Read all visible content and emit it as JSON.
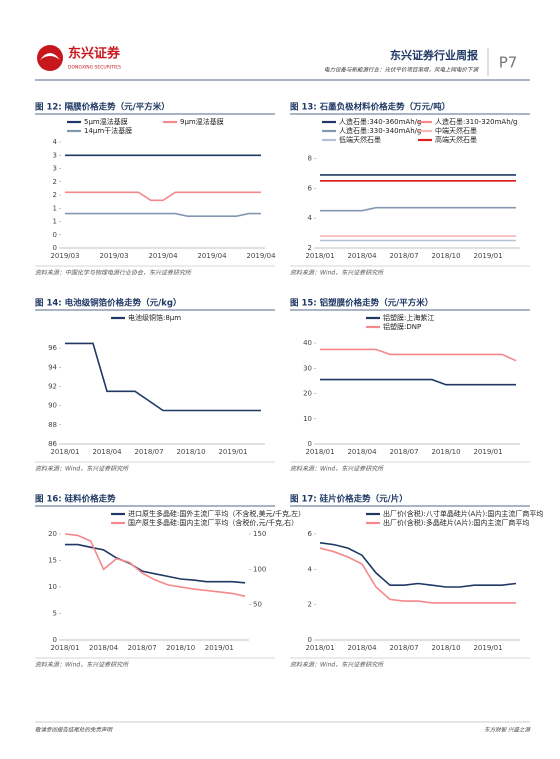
{
  "header": {
    "logo": "东兴证券",
    "logo_en": "DONGXING SECURITIES",
    "title": "东兴证券行业周报",
    "subtitle": "电力设备与新能源行业：光伏平价项目渐增，风电上网电价下调",
    "page": "P7"
  },
  "footer": {
    "left": "敬请参阅报告结尾处的免责声明",
    "right": "东方财智 兴盛之源"
  },
  "chart_data": [
    {
      "type": "line",
      "title": "图 12: 隔膜价格走势（元/平方米）",
      "source": "资料来源：中国化学与物理电源行业协会，东兴证券研究所",
      "categories": [
        "2019/03",
        null,
        null,
        null,
        "2019/03",
        null,
        null,
        null,
        "2019/04",
        null,
        null,
        null,
        "2019/04",
        null,
        null,
        null,
        "2019/04"
      ],
      "series": [
        {
          "name": "5μm湿法基膜",
          "color": "#1f3864",
          "values": [
            3.5,
            3.5,
            3.5,
            3.5,
            3.5,
            3.5,
            3.5,
            3.5,
            3.5,
            3.5,
            3.5,
            3.5,
            3.5,
            3.5,
            3.5,
            3.5,
            3.5
          ]
        },
        {
          "name": "9μm湿法基膜",
          "color": "#f4888a",
          "values": [
            2.1,
            2.1,
            2.1,
            2.1,
            2.1,
            2.1,
            2.1,
            1.8,
            1.8,
            2.1,
            2.1,
            2.1,
            2.1,
            2.1,
            2.1,
            2.1,
            2.1
          ]
        },
        {
          "name": "14μm干法基膜",
          "color": "#8497b0",
          "values": [
            1.3,
            1.3,
            1.3,
            1.3,
            1.3,
            1.3,
            1.3,
            1.3,
            1.3,
            1.3,
            1.2,
            1.2,
            1.2,
            1.2,
            1.2,
            1.3,
            1.3
          ]
        }
      ],
      "ylim": [
        0,
        4
      ],
      "yticks": [
        0,
        {
          "value": 0.5,
          "label": "0"
        },
        1,
        {
          "value": 1.5,
          "label": "1"
        },
        2,
        {
          "value": 2.5,
          "label": "2"
        },
        3,
        {
          "value": 3.5,
          "label": "3"
        },
        4
      ],
      "grid": false
    },
    {
      "type": "line",
      "title": "图 13: 石墨负极材料价格走势（万元/吨）",
      "source": "资料来源：Wind，东兴证券研究所",
      "categories": [
        "2018/01",
        null,
        null,
        "2018/04",
        null,
        null,
        "2018/07",
        null,
        null,
        "2018/10",
        null,
        null,
        "2019/01",
        null,
        null
      ],
      "series": [
        {
          "name": "人造石墨:340-360mAh/g",
          "color": "#1f3864",
          "values": [
            6.9,
            6.9,
            6.9,
            6.9,
            6.9,
            6.9,
            6.9,
            6.9,
            6.9,
            6.9,
            6.9,
            6.9,
            6.9,
            6.9,
            6.9
          ]
        },
        {
          "name": "人造石墨:310-320mAh/g",
          "color": "#f4888a",
          "values": [
            6.5,
            6.5,
            6.5,
            6.5,
            6.5,
            6.5,
            6.5,
            6.5,
            6.5,
            6.5,
            6.5,
            6.5,
            6.5,
            6.5,
            6.5
          ]
        },
        {
          "name": "人造石墨:330-340mAh/g",
          "color": "#8497b0",
          "values": [
            4.5,
            4.5,
            4.5,
            4.5,
            4.7,
            4.7,
            4.7,
            4.7,
            4.7,
            4.7,
            4.7,
            4.7,
            4.7,
            4.7,
            4.7
          ]
        },
        {
          "name": "中端天然石墨",
          "color": "#f7b6b6",
          "values": [
            2.8,
            2.8,
            2.8,
            2.8,
            2.8,
            2.8,
            2.8,
            2.8,
            2.8,
            2.8,
            2.8,
            2.8,
            2.8,
            2.8,
            2.8
          ]
        },
        {
          "name": "低端天然石墨",
          "color": "#b4c0d3",
          "values": [
            2.5,
            2.5,
            2.5,
            2.5,
            2.5,
            2.5,
            2.5,
            2.5,
            2.5,
            2.5,
            2.5,
            2.5,
            2.5,
            2.5,
            2.5
          ]
        },
        {
          "name": "高端天然石墨",
          "color": "#e02020",
          "values": [
            6.5,
            6.5,
            6.5,
            6.5,
            6.5,
            6.5,
            6.5,
            6.5,
            6.5,
            6.5,
            6.5,
            6.5,
            6.5,
            6.5,
            6.5
          ]
        }
      ],
      "ylim": [
        2,
        8.5
      ],
      "yticks": [
        2,
        4,
        6,
        8
      ],
      "grid": false
    },
    {
      "type": "line",
      "title": "图 14: 电池级铜箔价格走势（元/kg）",
      "source": "资料来源：Wind，东兴证券研究所",
      "categories": [
        "2018/01",
        null,
        null,
        "2018/04",
        null,
        null,
        "2018/07",
        null,
        null,
        "2018/10",
        null,
        null,
        "2019/01",
        null,
        null
      ],
      "series": [
        {
          "name": "电池级铜箔:8μm",
          "color": "#1f3864",
          "values": [
            96.5,
            96.5,
            96.5,
            91.5,
            91.5,
            91.5,
            90.5,
            89.5,
            89.5,
            89.5,
            89.5,
            89.5,
            89.5,
            89.5,
            89.5
          ]
        }
      ],
      "ylim": [
        86,
        98
      ],
      "yticks": [
        86,
        88,
        90,
        92,
        94,
        96
      ],
      "grid": false
    },
    {
      "type": "line",
      "title": "图 15: 铝塑膜价格走势（元/平方米）",
      "source": "资料来源：Wind，东兴证券研究所",
      "categories": [
        "2018/01",
        null,
        null,
        "2018/04",
        null,
        null,
        "2018/07",
        null,
        null,
        "2018/10",
        null,
        null,
        "2019/01",
        null,
        null
      ],
      "series": [
        {
          "name": "铝塑膜:上海紫江",
          "color": "#1f3864",
          "values": [
            25.5,
            25.5,
            25.5,
            25.5,
            25.5,
            25.5,
            25.5,
            25.5,
            25.5,
            23.5,
            23.5,
            23.5,
            23.5,
            23.5,
            23.5
          ]
        },
        {
          "name": "铝塑膜:DNP",
          "color": "#f4888a",
          "values": [
            37.5,
            37.5,
            37.5,
            37.5,
            37.5,
            35.5,
            35.5,
            35.5,
            35.5,
            35.5,
            35.5,
            35.5,
            35.5,
            35.5,
            33
          ]
        }
      ],
      "ylim": [
        0,
        42
      ],
      "yticks": [
        0,
        10,
        20,
        30,
        40
      ],
      "grid": false
    },
    {
      "type": "line",
      "title": "图 16: 硅料价格走势",
      "source": "资料来源：Wind，东兴证券研究所",
      "categories": [
        "2018/01",
        null,
        null,
        "2018/04",
        null,
        null,
        "2018/07",
        null,
        null,
        "2018/10",
        null,
        null,
        "2019/01",
        null,
        null
      ],
      "series": [
        {
          "name": "进口原生多晶硅:国外主流厂平均（不含税,美元/千克,左）",
          "color": "#1f3864",
          "values": [
            18,
            18,
            17.5,
            17,
            15.5,
            14.5,
            13,
            12.5,
            12,
            11.5,
            11.3,
            11,
            11,
            11,
            10.8
          ]
        },
        {
          "name": "国产原生多晶硅:国内主流厂平均（含税价,元/千克,右）",
          "color": "#f4888a",
          "axis": "y2",
          "values": [
            150,
            148,
            140,
            100,
            115,
            110,
            95,
            85,
            78,
            75,
            72,
            70,
            68,
            66,
            62
          ]
        }
      ],
      "ylim": [
        0,
        20
      ],
      "yticks": [
        0,
        5,
        10,
        15,
        20
      ],
      "y2lim": [
        0,
        150
      ],
      "y2ticks": [
        50,
        100,
        150
      ],
      "grid": false
    },
    {
      "type": "line",
      "title": "图 17: 硅片价格走势（元/片）",
      "source": "资料来源：Wind，东兴证券研究所",
      "categories": [
        "2018/01",
        null,
        null,
        "2018/04",
        null,
        null,
        "2018/07",
        null,
        null,
        "2018/10",
        null,
        null,
        "2019/01",
        null,
        null
      ],
      "series": [
        {
          "name": "出厂价(含税):八寸单晶硅片(A片):国内主流厂商平均",
          "color": "#1f3864",
          "values": [
            5.5,
            5.4,
            5.2,
            4.8,
            3.8,
            3.1,
            3.1,
            3.2,
            3.1,
            3,
            3,
            3.1,
            3.1,
            3.1,
            3.2
          ]
        },
        {
          "name": "出厂价(含税):多晶硅片(A片):国内主流厂商平均",
          "color": "#f4888a",
          "values": [
            5.2,
            5,
            4.7,
            4.3,
            3,
            2.3,
            2.2,
            2.2,
            2.1,
            2.1,
            2.1,
            2.1,
            2.1,
            2.1,
            2.1
          ]
        }
      ],
      "ylim": [
        0,
        6
      ],
      "yticks": [
        0,
        2,
        4,
        6
      ],
      "grid": false
    }
  ]
}
